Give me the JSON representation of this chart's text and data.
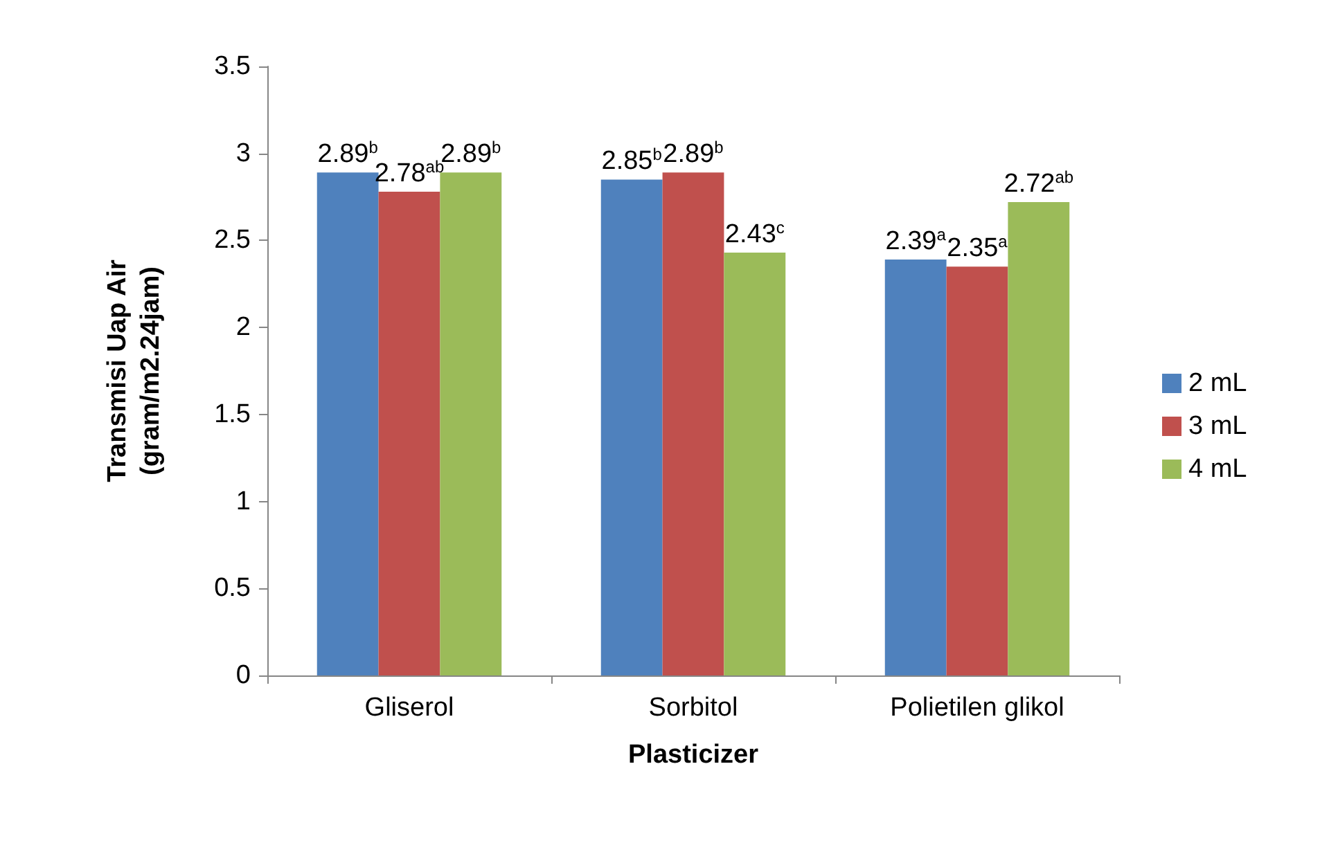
{
  "chart_data": {
    "type": "bar",
    "xlabel": "Plasticizer",
    "ylabel": "Transmisi Uap Air\n(gram/m2.24jam)",
    "categories": [
      "Gliserol",
      "Sorbitol",
      "Polietilen glikol"
    ],
    "series": [
      {
        "name": "2 mL",
        "color": "#4f81bd",
        "values": [
          2.89,
          2.85,
          2.39
        ],
        "value_labels": [
          "2.89$^{b}$",
          "2.85$^{b}$",
          "2.39$^{a}$"
        ]
      },
      {
        "name": "3 mL",
        "color": "#c0504d",
        "values": [
          2.78,
          2.89,
          2.35
        ],
        "value_labels": [
          "2.78$^{ab}$",
          "2.89$^{b}$",
          "2.35$^{a}$"
        ]
      },
      {
        "name": "4 mL",
        "color": "#9bbb59",
        "values": [
          2.89,
          2.43,
          2.72
        ],
        "value_labels": [
          "2.89$^{b}$",
          "2.43$^{c}$",
          "2.72$^{ab}$"
        ]
      }
    ],
    "ylim": [
      0,
      3.5
    ],
    "yticks": [
      0,
      0.5,
      1,
      1.5,
      2,
      2.5,
      3,
      3.5
    ],
    "grid": false,
    "legend": "right"
  }
}
